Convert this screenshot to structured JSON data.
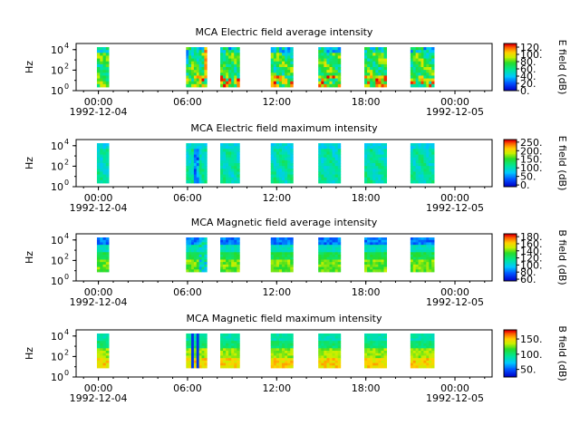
{
  "chart_data": [
    {
      "type": "heatmap",
      "title": "MCA  Electric field average intensity",
      "ylabel": "Hz",
      "colorbar_label": "E field (dB)",
      "y_ticks": [
        "10",
        "10",
        "10"
      ],
      "y_tick_exponents": [
        "0",
        "2",
        "4"
      ],
      "colorbar_ticks": [
        {
          "value": 0,
          "label": "0."
        },
        {
          "value": 20,
          "label": "20."
        },
        {
          "value": 40,
          "label": "40."
        },
        {
          "value": 60,
          "label": "60."
        },
        {
          "value": 80,
          "label": "80."
        },
        {
          "value": 100,
          "label": "100."
        },
        {
          "value": 120,
          "label": "120."
        }
      ],
      "colorbar_range": [
        0,
        130
      ],
      "style": "eavg"
    },
    {
      "type": "heatmap",
      "title": "MCA  Electric field maximum intensity",
      "ylabel": "Hz",
      "colorbar_label": "E field (dB)",
      "y_ticks": [
        "10",
        "10",
        "10"
      ],
      "y_tick_exponents": [
        "0",
        "2",
        "4"
      ],
      "colorbar_ticks": [
        {
          "value": 0,
          "label": "0."
        },
        {
          "value": 50,
          "label": "50."
        },
        {
          "value": 100,
          "label": "100."
        },
        {
          "value": 150,
          "label": "150."
        },
        {
          "value": 200,
          "label": "200."
        },
        {
          "value": 250,
          "label": "250."
        }
      ],
      "colorbar_range": [
        -10,
        265
      ],
      "style": "emax"
    },
    {
      "type": "heatmap",
      "title": "MCA  Magnetic field average intensity",
      "ylabel": "Hz",
      "colorbar_label": "B field (dB)",
      "y_ticks": [
        "10",
        "10",
        "10"
      ],
      "y_tick_exponents": [
        "0",
        "2",
        "4"
      ],
      "colorbar_ticks": [
        {
          "value": 60,
          "label": "60."
        },
        {
          "value": 80,
          "label": "80."
        },
        {
          "value": 100,
          "label": "100."
        },
        {
          "value": 120,
          "label": "120."
        },
        {
          "value": 140,
          "label": "140."
        },
        {
          "value": 160,
          "label": "160."
        },
        {
          "value": 180,
          "label": "180."
        }
      ],
      "colorbar_range": [
        55,
        188
      ],
      "style": "bavg"
    },
    {
      "type": "heatmap",
      "title": "MCA  Magnetic field maximum intensity",
      "ylabel": "Hz",
      "colorbar_label": "B field (dB)",
      "y_ticks": [
        "10",
        "10",
        "10"
      ],
      "y_tick_exponents": [
        "0",
        "2",
        "4"
      ],
      "colorbar_ticks": [
        {
          "value": 50,
          "label": "50."
        },
        {
          "value": 100,
          "label": "100."
        },
        {
          "value": 150,
          "label": "150."
        }
      ],
      "colorbar_range": [
        25,
        180
      ],
      "style": "bmax"
    }
  ],
  "x_axis": {
    "range_hours": [
      -1.5,
      26.5
    ],
    "ticks": [
      {
        "hours": 0,
        "label": "00:00",
        "date": "1992-12-04"
      },
      {
        "hours": 6,
        "label": "06:00",
        "date": ""
      },
      {
        "hours": 12,
        "label": "12:00",
        "date": ""
      },
      {
        "hours": 18,
        "label": "18:00",
        "date": ""
      },
      {
        "hours": 24,
        "label": "00:00",
        "date": "1992-12-05"
      }
    ]
  },
  "data_blocks_hours": [
    {
      "start": -0.1,
      "end": 0.7
    },
    {
      "start": 5.9,
      "end": 7.3
    },
    {
      "start": 8.2,
      "end": 9.5
    },
    {
      "start": 11.6,
      "end": 13.1
    },
    {
      "start": 14.8,
      "end": 16.3
    },
    {
      "start": 17.9,
      "end": 19.4
    },
    {
      "start": 21.0,
      "end": 22.6
    }
  ]
}
